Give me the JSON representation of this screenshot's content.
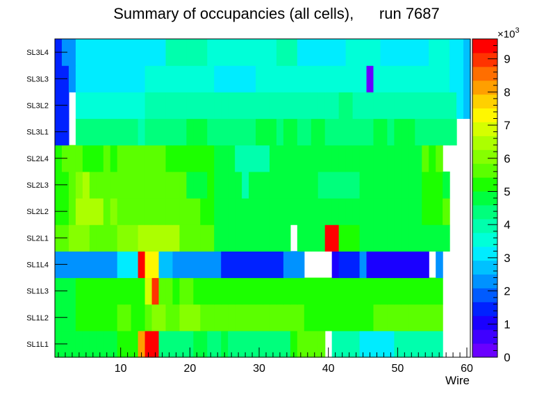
{
  "chart_data": {
    "type": "heatmap",
    "title": "Summary of occupancies (all cells),      run 7687",
    "xlabel": "Wire",
    "ylabel": "",
    "xlim": [
      0.5,
      60.5
    ],
    "x_ticks": [
      "10",
      "20",
      "30",
      "40",
      "50",
      "60"
    ],
    "x_tick_values": [
      10,
      20,
      30,
      40,
      50,
      60
    ],
    "layers": [
      "SL1L1",
      "SL1L2",
      "SL1L3",
      "SL1L4",
      "SL2L1",
      "SL2L2",
      "SL2L3",
      "SL2L4",
      "SL3L1",
      "SL3L2",
      "SL3L3",
      "SL3L4"
    ],
    "z_range": [
      0,
      9600
    ],
    "z_multiplier": "×10",
    "z_exponent": "3",
    "z_ticks": [
      "0",
      "1",
      "2",
      "3",
      "4",
      "5",
      "6",
      "7",
      "8",
      "9"
    ],
    "z_tick_values": [
      0,
      1000,
      2000,
      3000,
      4000,
      5000,
      6000,
      7000,
      8000,
      9000
    ],
    "values": [
      [
        5000,
        5000,
        5000,
        5000,
        5000,
        4800,
        4800,
        4800,
        4600,
        5200,
        5200,
        5200,
        8000,
        9500,
        9500,
        4500,
        4500,
        4500,
        4500,
        4500,
        4800,
        4800,
        4500,
        4500,
        4600,
        4200,
        4200,
        4200,
        4200,
        4200,
        4300,
        4200,
        4200,
        4200,
        5200,
        5600,
        5600,
        5600,
        5600,
        null,
        3800,
        3800,
        3800,
        3800,
        3300,
        3300,
        3300,
        3300,
        3300,
        3800,
        3800,
        3800,
        3800,
        3800,
        3800,
        4100,
        null,
        null,
        null,
        null
      ],
      [
        5000,
        5000,
        5000,
        5200,
        5200,
        5200,
        5200,
        5200,
        5200,
        5800,
        5800,
        5200,
        5200,
        5800,
        6000,
        6000,
        5800,
        5600,
        6000,
        6000,
        6000,
        5600,
        5600,
        5600,
        5600,
        5600,
        5600,
        5600,
        5600,
        5600,
        5600,
        5600,
        5600,
        5600,
        5600,
        5600,
        5200,
        5200,
        5200,
        5200,
        5200,
        5200,
        5200,
        5200,
        5200,
        5200,
        5600,
        5600,
        5600,
        5600,
        5600,
        5600,
        5600,
        5600,
        5600,
        5600,
        null,
        null,
        null,
        null
      ],
      [
        5000,
        5000,
        5000,
        5200,
        5200,
        5200,
        5200,
        5200,
        5200,
        5200,
        5200,
        5200,
        5200,
        6800,
        9000,
        5600,
        5600,
        5200,
        5800,
        5600,
        5200,
        5200,
        5200,
        5200,
        5200,
        5200,
        5200,
        5200,
        5200,
        5200,
        5200,
        5200,
        5200,
        5200,
        5200,
        5200,
        5200,
        5200,
        5200,
        5200,
        5200,
        5200,
        5200,
        5200,
        5200,
        5200,
        5200,
        5200,
        5200,
        5200,
        5200,
        5200,
        5200,
        5200,
        5200,
        5200,
        null,
        null,
        null,
        null
      ],
      [
        2200,
        2200,
        2200,
        2200,
        2200,
        2200,
        2200,
        2200,
        2200,
        3300,
        3300,
        3300,
        9300,
        7200,
        7200,
        2800,
        2800,
        2400,
        2400,
        2400,
        2400,
        2400,
        2400,
        2400,
        1600,
        1600,
        1600,
        1600,
        1600,
        1600,
        1600,
        1600,
        1600,
        2200,
        2200,
        2200,
        null,
        null,
        null,
        null,
        1100,
        1400,
        1400,
        1400,
        2100,
        1100,
        1100,
        1100,
        1100,
        1100,
        1100,
        1100,
        1100,
        1100,
        null,
        2100,
        null,
        null,
        null,
        null
      ],
      [
        5600,
        5600,
        6100,
        6100,
        6100,
        5600,
        5600,
        5600,
        5800,
        6100,
        6100,
        6100,
        6400,
        6400,
        6400,
        6400,
        6400,
        6400,
        5800,
        5800,
        5800,
        5800,
        5800,
        4600,
        4600,
        4600,
        4600,
        4600,
        4600,
        4600,
        4600,
        4600,
        4600,
        4600,
        null,
        4600,
        4600,
        4600,
        4600,
        9500,
        9300,
        5400,
        5400,
        5400,
        4600,
        4600,
        4600,
        4600,
        4600,
        4600,
        4600,
        4600,
        4600,
        5000,
        5000,
        5000,
        5000,
        null,
        null,
        null
      ],
      [
        5200,
        5200,
        5600,
        6300,
        6300,
        6300,
        6300,
        5600,
        6100,
        5800,
        5800,
        5800,
        5800,
        5800,
        5800,
        5800,
        5800,
        5800,
        5800,
        5600,
        5600,
        5400,
        5400,
        4600,
        4600,
        4600,
        4600,
        4600,
        4600,
        4600,
        4600,
        4600,
        4600,
        4600,
        4600,
        4600,
        4600,
        4600,
        5000,
        4600,
        4600,
        4600,
        4600,
        4600,
        4600,
        4600,
        4600,
        4600,
        4600,
        4600,
        4600,
        4600,
        4600,
        5200,
        5200,
        5200,
        5600,
        null,
        null,
        null
      ],
      [
        5200,
        5200,
        5800,
        6100,
        6300,
        5800,
        5800,
        5600,
        5600,
        5600,
        5600,
        5600,
        5600,
        5800,
        5800,
        5800,
        5800,
        5800,
        5800,
        5000,
        5000,
        5000,
        5200,
        4600,
        4600,
        4600,
        4600,
        3800,
        4600,
        4600,
        4600,
        4600,
        4600,
        4600,
        4600,
        4600,
        4600,
        4600,
        4200,
        4200,
        4200,
        4200,
        4200,
        4200,
        4600,
        4600,
        4600,
        4600,
        4600,
        4600,
        4600,
        4600,
        4600,
        5200,
        5200,
        5200,
        5000,
        null,
        null,
        null
      ],
      [
        5400,
        5800,
        5800,
        5800,
        5400,
        5400,
        5400,
        5800,
        5400,
        5800,
        5800,
        5800,
        5800,
        5800,
        5800,
        5800,
        5200,
        5200,
        5200,
        5400,
        5400,
        5400,
        5400,
        4600,
        4600,
        4600,
        3800,
        3800,
        3800,
        3800,
        3800,
        4600,
        4600,
        4600,
        4600,
        4600,
        4600,
        4600,
        4600,
        4600,
        4600,
        4600,
        4600,
        4600,
        4600,
        4600,
        4600,
        4600,
        4600,
        4600,
        4600,
        4600,
        4600,
        5600,
        5200,
        5600,
        null,
        null,
        null,
        null
      ],
      [
        1400,
        1400,
        null,
        4200,
        4400,
        4400,
        4400,
        4400,
        4400,
        4400,
        4400,
        4400,
        3800,
        4400,
        4400,
        4400,
        4400,
        4400,
        4400,
        4800,
        4800,
        4800,
        4400,
        4400,
        4400,
        4400,
        4400,
        4400,
        4400,
        4800,
        4800,
        4800,
        4400,
        4800,
        4800,
        4400,
        4400,
        4800,
        4800,
        4400,
        4400,
        4400,
        4400,
        4400,
        4400,
        4400,
        4800,
        4800,
        4400,
        4800,
        4800,
        4800,
        4400,
        4400,
        4400,
        4400,
        4400,
        4400,
        null,
        null
      ],
      [
        1600,
        1600,
        null,
        3600,
        3600,
        3600,
        3400,
        3400,
        3400,
        3600,
        3600,
        3600,
        3600,
        3800,
        3800,
        3800,
        3800,
        3800,
        3800,
        3800,
        3800,
        3800,
        3800,
        3800,
        3800,
        3800,
        3800,
        3800,
        3800,
        3800,
        3800,
        3800,
        3800,
        3800,
        3800,
        3800,
        3800,
        3800,
        3800,
        3800,
        4000,
        4400,
        4400,
        3800,
        3800,
        3800,
        3800,
        3800,
        3800,
        3800,
        3800,
        3800,
        3800,
        3800,
        3800,
        3800,
        3800,
        3800,
        3200,
        2800
      ],
      [
        1400,
        1400,
        2500,
        3300,
        3300,
        3300,
        3300,
        3300,
        3300,
        3300,
        3300,
        3300,
        3300,
        3600,
        3600,
        3600,
        3600,
        3600,
        3600,
        3600,
        3600,
        3600,
        3600,
        3300,
        3300,
        3300,
        3300,
        3300,
        3300,
        3600,
        3600,
        3600,
        3600,
        3600,
        3600,
        3600,
        3600,
        3600,
        3600,
        3600,
        3600,
        3600,
        3600,
        3600,
        3600,
        300,
        3600,
        3600,
        3600,
        3600,
        3600,
        3600,
        3600,
        3600,
        3600,
        3600,
        3600,
        3300,
        3300,
        2800
      ],
      [
        1400,
        2200,
        2200,
        3300,
        3300,
        3300,
        3300,
        3300,
        3300,
        3300,
        3300,
        3300,
        3300,
        3300,
        3300,
        3300,
        4100,
        4100,
        4100,
        4100,
        4100,
        4100,
        3600,
        3600,
        3600,
        3600,
        3600,
        3600,
        3600,
        3600,
        3600,
        3600,
        4100,
        4100,
        4100,
        3300,
        3300,
        3300,
        3300,
        3300,
        3300,
        3300,
        3600,
        3600,
        3600,
        3600,
        3600,
        3300,
        3300,
        3300,
        3300,
        3300,
        3300,
        3300,
        3600,
        3600,
        3600,
        3300,
        3300,
        2800
      ]
    ]
  }
}
